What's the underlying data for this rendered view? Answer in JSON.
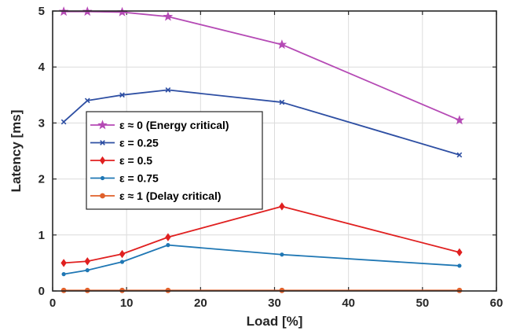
{
  "chart_data": {
    "type": "line",
    "xlabel": "Load [%]",
    "ylabel": "Latency [ms]",
    "xlim": [
      0,
      60
    ],
    "ylim": [
      0,
      5
    ],
    "xticks": [
      "0",
      "10",
      "20",
      "30",
      "40",
      "50",
      "60"
    ],
    "yticks": [
      "0",
      "1",
      "2",
      "3",
      "4",
      "5"
    ],
    "grid": true,
    "legend_position": "center-left",
    "x": [
      1.5,
      4.7,
      9.4,
      15.6,
      31.0,
      55.0
    ],
    "series": [
      {
        "name": "ε ≈ 0 (Energy critical)",
        "color": "#b54ab5",
        "marker": "star",
        "values": [
          4.99,
          4.99,
          4.98,
          4.9,
          4.4,
          3.05
        ]
      },
      {
        "name": "ε = 0.25",
        "color": "#2e4fa3",
        "marker": "x",
        "values": [
          3.02,
          3.4,
          3.5,
          3.59,
          3.37,
          2.43
        ]
      },
      {
        "name": "ε = 0.5",
        "color": "#e02020",
        "marker": "diamond",
        "values": [
          0.5,
          0.53,
          0.66,
          0.96,
          1.51,
          0.69
        ]
      },
      {
        "name": "ε = 0.75",
        "color": "#1f77b4",
        "marker": "dot",
        "values": [
          0.3,
          0.37,
          0.52,
          0.82,
          0.65,
          0.45
        ]
      },
      {
        "name": "ε ≈ 1 (Delay critical)",
        "color": "#e0602a",
        "marker": "circle",
        "values": [
          0.01,
          0.01,
          0.01,
          0.01,
          0.01,
          0.01
        ]
      }
    ]
  }
}
